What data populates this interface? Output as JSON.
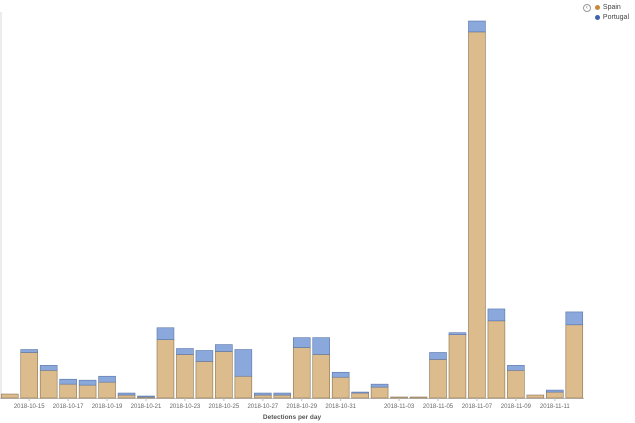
{
  "legend": {
    "toggle_symbol": "‹",
    "items": [
      {
        "label": "Spain",
        "color": "#c8873a"
      },
      {
        "label": "Portugal",
        "color": "#3d63b0"
      }
    ]
  },
  "chart_data": {
    "type": "bar",
    "stacked": true,
    "xlabel": "Detections per day",
    "ylabel": "",
    "grid": false,
    "legend_position": "top-right",
    "categories": [
      "2018-10-14",
      "2018-10-15",
      "2018-10-16",
      "2018-10-17",
      "2018-10-18",
      "2018-10-19",
      "2018-10-20",
      "2018-10-21",
      "2018-10-22",
      "2018-10-23",
      "2018-10-24",
      "2018-10-25",
      "2018-10-26",
      "2018-10-27",
      "2018-10-28",
      "2018-10-29",
      "2018-10-30",
      "2018-10-31",
      "2018-11-01",
      "2018-11-02",
      "2018-11-03",
      "2018-11-04",
      "2018-11-05",
      "2018-11-06",
      "2018-11-07",
      "2018-11-08",
      "2018-11-09",
      "2018-11-10",
      "2018-11-11",
      "2018-11-12"
    ],
    "tick_labels": [
      "2018-10-15",
      "2018-10-17",
      "2018-10-19",
      "2018-10-21",
      "2018-10-23",
      "2018-10-25",
      "2018-10-27",
      "2018-10-29",
      "2018-10-31",
      "2018-11-03",
      "2018-11-05",
      "2018-11-07",
      "2018-11-09",
      "2018-11-11"
    ],
    "ylim": [
      0,
      380
    ],
    "series": [
      {
        "name": "Spain",
        "fill": "#dcbc8c",
        "values": [
          4,
          46,
          28,
          14,
          13,
          16,
          3,
          1,
          59,
          44,
          37,
          47,
          22,
          3,
          3,
          51,
          44,
          21,
          5,
          11,
          1,
          1,
          39,
          64,
          370,
          78,
          28,
          3,
          6,
          74
        ]
      },
      {
        "name": "Portugal",
        "fill": "#8aa8dc",
        "values": [
          0,
          3,
          5,
          5,
          5,
          6,
          2,
          1,
          12,
          6,
          11,
          7,
          27,
          2,
          2,
          10,
          17,
          5,
          1,
          3,
          0,
          0,
          7,
          2,
          11,
          12,
          5,
          0,
          2,
          13
        ]
      }
    ]
  }
}
